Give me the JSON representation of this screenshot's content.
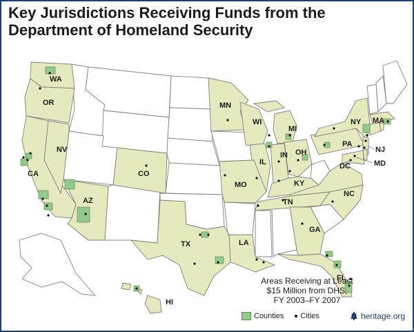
{
  "title": {
    "line1": "Key Jurisdictions Receiving Funds from the",
    "line2": "Department of Homeland Security"
  },
  "caption": {
    "line1": "Areas Receiving at Least",
    "line2": "$15 Million from DHS,",
    "line3": "FY 2003–FY 2007"
  },
  "legend": {
    "counties": "Counties",
    "cities": "Cities"
  },
  "brand": {
    "text": "heritage.org",
    "icon": "liberty-bell-icon"
  },
  "state_labels": {
    "WA": "WA",
    "OR": "OR",
    "CA": "CA",
    "NV": "NV",
    "AZ": "AZ",
    "CO": "CO",
    "TX": "TX",
    "MN": "MN",
    "WI": "WI",
    "IL": "IL",
    "MO": "MO",
    "LA": "LA",
    "MI": "MI",
    "IN": "IN",
    "OH": "OH",
    "KY": "KY",
    "TN": "TN",
    "GA": "GA",
    "FL": "FL",
    "NC": "NC",
    "PA": "PA",
    "NY": "NY",
    "MA": "MA",
    "NJ": "NJ",
    "DC": "DC",
    "MD": "MD",
    "HI": "HI"
  },
  "colors": {
    "funded_state": "#e6e8bd",
    "unfunded_state": "#ffffff",
    "county": "#93c98a",
    "border": "#1f3f6e"
  }
}
